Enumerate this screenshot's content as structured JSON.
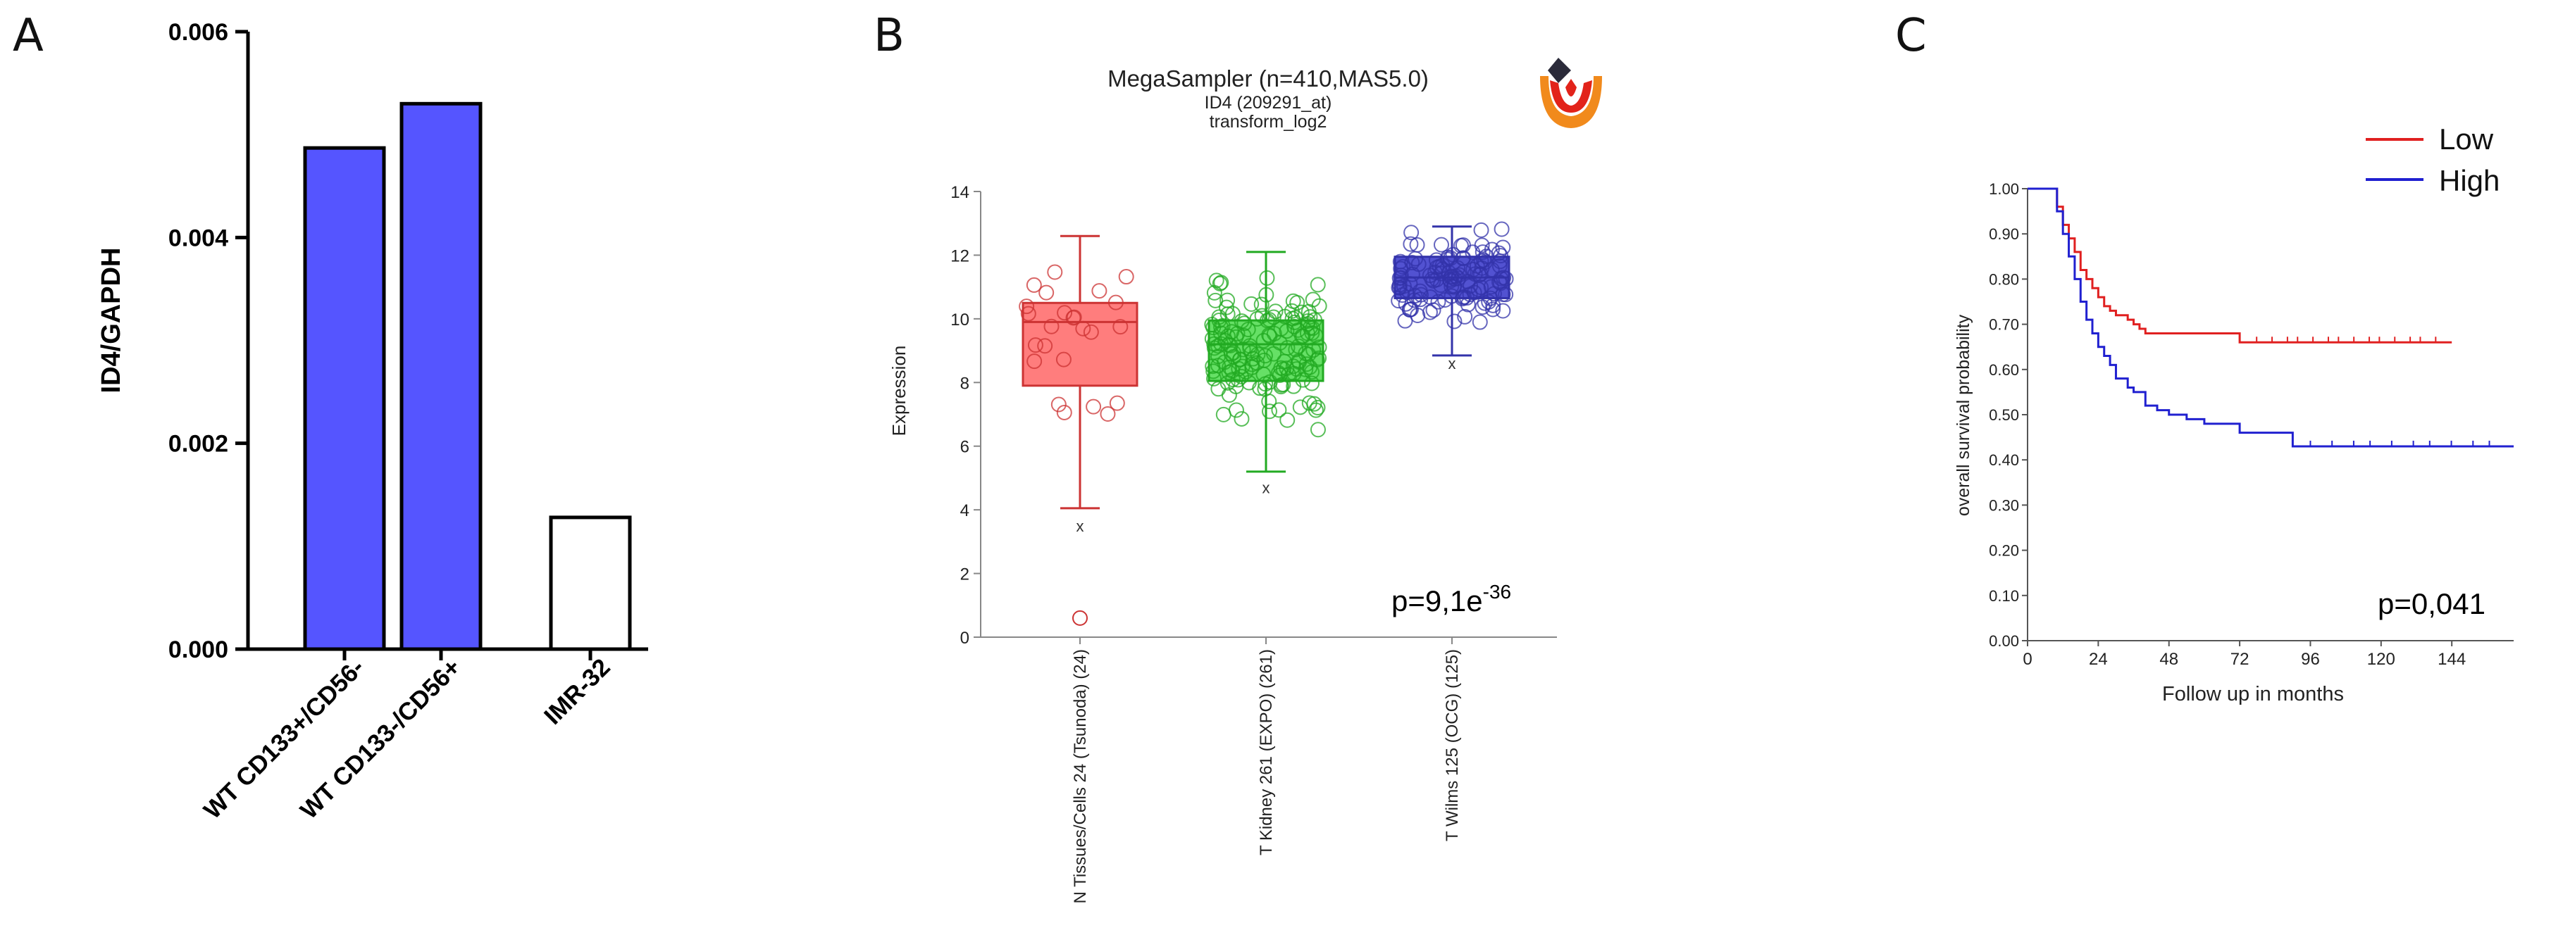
{
  "panel_labels": {
    "a": "A",
    "b": "B",
    "c": "C"
  },
  "chart_data": [
    {
      "panel": "A",
      "type": "bar",
      "title": "",
      "xlabel": "",
      "ylabel": "ID4/GAPDH",
      "ylim": [
        0,
        0.006
      ],
      "yticks": [
        "0.000",
        "0.002",
        "0.004",
        "0.006"
      ],
      "categories": [
        "WT CD133+/CD56-",
        "WT CD133-/CD56+",
        "IMR-32"
      ],
      "values": [
        0.00487,
        0.0053,
        0.00128
      ],
      "colors": [
        "#5555ff",
        "#5555ff",
        "#ffffff"
      ]
    },
    {
      "panel": "B",
      "type": "box",
      "title": "MegaSampler (n=410,MAS5.0)",
      "subtitle1": "ID4 (209291_at)",
      "subtitle2": "transform_log2",
      "ylabel": "Expression",
      "ylim": [
        0,
        14
      ],
      "yticks": [
        "0",
        "2",
        "4",
        "6",
        "8",
        "10",
        "12",
        "14"
      ],
      "annotation": "p=9,1e",
      "annotation_exp": "-36",
      "outlier_marker": "x",
      "groups": [
        {
          "label": "N Tissues/Cells 24 (Tsunoda) (24)",
          "q1": 7.9,
          "median": 9.9,
          "q3": 10.5,
          "wlow": 4.05,
          "whigh": 12.6,
          "xmark": 3.5,
          "color": "#cc3333",
          "fill": "#ff6f6f",
          "n": 24
        },
        {
          "label": "T Kidney 261 (EXPO) (261)",
          "q1": 8.05,
          "median": 9.2,
          "q3": 9.95,
          "wlow": 5.2,
          "whigh": 12.1,
          "xmark": 4.7,
          "color": "#22aa22",
          "fill": "#55dd55",
          "n": 261
        },
        {
          "label": "T Wilms 125 (OCG) (125)",
          "q1": 10.65,
          "median": 11.3,
          "q3": 11.95,
          "wlow": 8.85,
          "whigh": 12.9,
          "xmark": 8.6,
          "color": "#3333aa",
          "fill": "#3f3fcc",
          "n": 125
        }
      ]
    },
    {
      "panel": "C",
      "type": "line",
      "title": "",
      "xlabel": "Follow up in months",
      "ylabel": "overall survival probability",
      "xlim": [
        0,
        165
      ],
      "ylim": [
        0,
        1
      ],
      "xticks": [
        "0",
        "24",
        "48",
        "72",
        "96",
        "120",
        "144"
      ],
      "yticks": [
        "0.00",
        "0.10",
        "0.20",
        "0.30",
        "0.40",
        "0.50",
        "0.60",
        "0.70",
        "0.80",
        "0.90",
        "1.00"
      ],
      "annotation": "p=0,041",
      "series": [
        {
          "name": "Low",
          "color": "#e02020",
          "x": [
            0,
            8,
            10,
            12,
            14,
            16,
            18,
            20,
            22,
            24,
            26,
            28,
            30,
            34,
            36,
            38,
            40,
            44,
            48,
            72,
            144
          ],
          "y": [
            1.0,
            1.0,
            0.96,
            0.92,
            0.89,
            0.86,
            0.82,
            0.8,
            0.78,
            0.76,
            0.74,
            0.73,
            0.72,
            0.71,
            0.7,
            0.69,
            0.68,
            0.68,
            0.68,
            0.66,
            0.66
          ]
        },
        {
          "name": "High",
          "color": "#2020d0",
          "x": [
            0,
            8,
            10,
            12,
            14,
            16,
            18,
            20,
            22,
            24,
            26,
            28,
            30,
            34,
            36,
            40,
            44,
            48,
            54,
            60,
            72,
            84,
            90,
            165
          ],
          "y": [
            1.0,
            1.0,
            0.95,
            0.9,
            0.85,
            0.8,
            0.75,
            0.71,
            0.68,
            0.65,
            0.63,
            0.61,
            0.58,
            0.56,
            0.55,
            0.52,
            0.51,
            0.5,
            0.49,
            0.48,
            0.46,
            0.46,
            0.43,
            0.43
          ]
        }
      ]
    }
  ]
}
